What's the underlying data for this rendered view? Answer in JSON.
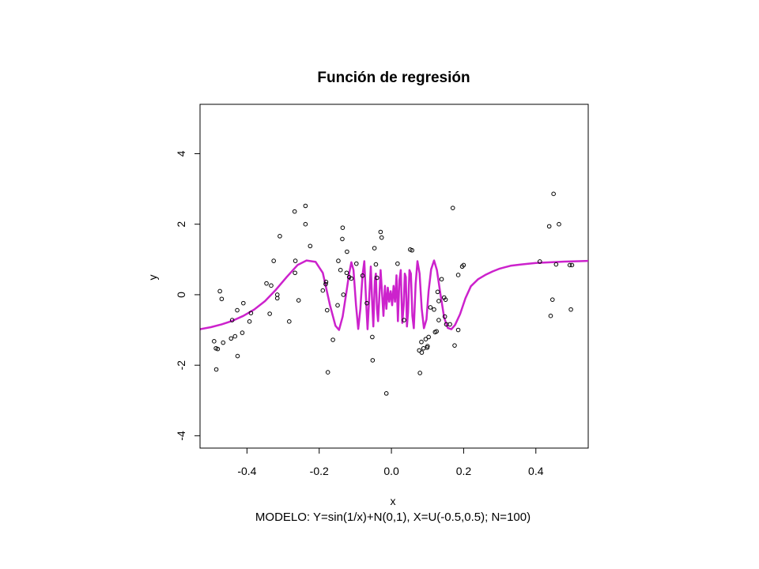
{
  "chart_data": {
    "type": "scatter",
    "title": "Función de regresión",
    "xlabel": "x",
    "ylabel": "y",
    "subtitle": "MODELO: Y=sin(1/x)+N(0,1), X=U(-0.5,0.5);  N=100)",
    "xlim": [
      -0.53,
      0.545
    ],
    "ylim": [
      -4.35,
      5.4
    ],
    "x_ticks": [
      -0.4,
      -0.2,
      0.0,
      0.2,
      0.4
    ],
    "x_tick_labels": [
      "-0.4",
      "-0.2",
      "0.0",
      "0.2",
      "0.4"
    ],
    "y_ticks": [
      -4,
      -2,
      0,
      2,
      4
    ],
    "y_tick_labels": [
      "-4",
      "-2",
      "0",
      "2",
      "4"
    ],
    "grid": false,
    "series": [
      {
        "kind": "points",
        "marker": "open-circle",
        "color": "#000000",
        "points": [
          [
            -0.491,
            -1.32
          ],
          [
            -0.486,
            -1.52
          ],
          [
            -0.481,
            -1.54
          ],
          [
            -0.485,
            -2.12
          ],
          [
            -0.475,
            0.1
          ],
          [
            -0.47,
            -0.12
          ],
          [
            -0.466,
            -1.36
          ],
          [
            -0.444,
            -1.24
          ],
          [
            -0.441,
            -0.72
          ],
          [
            -0.433,
            -1.18
          ],
          [
            -0.427,
            -0.44
          ],
          [
            -0.426,
            -1.74
          ],
          [
            -0.413,
            -1.08
          ],
          [
            -0.41,
            -0.24
          ],
          [
            -0.393,
            -0.76
          ],
          [
            -0.389,
            -0.52
          ],
          [
            -0.346,
            0.32
          ],
          [
            -0.337,
            -0.54
          ],
          [
            -0.333,
            0.26
          ],
          [
            -0.326,
            0.96
          ],
          [
            -0.316,
            -0.1
          ],
          [
            -0.316,
            0.0
          ],
          [
            -0.309,
            1.66
          ],
          [
            -0.283,
            -0.76
          ],
          [
            -0.268,
            2.36
          ],
          [
            -0.267,
            0.62
          ],
          [
            -0.266,
            0.96
          ],
          [
            -0.257,
            -0.16
          ],
          [
            -0.238,
            2.52
          ],
          [
            -0.238,
            2.0
          ],
          [
            -0.225,
            1.38
          ],
          [
            -0.19,
            0.12
          ],
          [
            -0.182,
            0.3
          ],
          [
            -0.181,
            0.36
          ],
          [
            -0.178,
            -0.44
          ],
          [
            -0.176,
            -2.2
          ],
          [
            -0.162,
            -1.28
          ],
          [
            -0.149,
            -0.3
          ],
          [
            -0.147,
            0.96
          ],
          [
            -0.141,
            0.7
          ],
          [
            -0.136,
            1.58
          ],
          [
            -0.135,
            1.9
          ],
          [
            -0.133,
            0.0
          ],
          [
            -0.124,
            0.62
          ],
          [
            -0.123,
            1.22
          ],
          [
            -0.117,
            0.5
          ],
          [
            -0.111,
            0.46
          ],
          [
            -0.097,
            0.88
          ],
          [
            -0.08,
            0.54
          ],
          [
            -0.068,
            -0.24
          ],
          [
            -0.053,
            -1.2
          ],
          [
            -0.052,
            -1.86
          ],
          [
            -0.047,
            1.32
          ],
          [
            -0.043,
            0.86
          ],
          [
            -0.04,
            0.48
          ],
          [
            -0.03,
            1.78
          ],
          [
            -0.027,
            1.62
          ],
          [
            -0.014,
            -2.8
          ],
          [
            0.017,
            0.88
          ],
          [
            0.035,
            -0.72
          ],
          [
            0.052,
            1.28
          ],
          [
            0.057,
            1.26
          ],
          [
            0.077,
            -1.58
          ],
          [
            0.079,
            -2.22
          ],
          [
            0.083,
            -1.34
          ],
          [
            0.084,
            -1.64
          ],
          [
            0.089,
            -1.52
          ],
          [
            0.095,
            -1.26
          ],
          [
            0.099,
            -1.5
          ],
          [
            0.1,
            -1.46
          ],
          [
            0.103,
            -1.2
          ],
          [
            0.108,
            -0.36
          ],
          [
            0.118,
            -0.42
          ],
          [
            0.121,
            -1.06
          ],
          [
            0.125,
            -1.04
          ],
          [
            0.128,
            0.08
          ],
          [
            0.131,
            -0.72
          ],
          [
            0.131,
            -0.18
          ],
          [
            0.139,
            0.44
          ],
          [
            0.146,
            -0.08
          ],
          [
            0.148,
            -0.62
          ],
          [
            0.15,
            -0.14
          ],
          [
            0.152,
            -0.84
          ],
          [
            0.162,
            -0.84
          ],
          [
            0.17,
            2.46
          ],
          [
            0.175,
            -1.44
          ],
          [
            0.185,
            0.56
          ],
          [
            0.185,
            -1.0
          ],
          [
            0.196,
            0.8
          ],
          [
            0.2,
            0.84
          ],
          [
            0.411,
            0.94
          ],
          [
            0.437,
            1.94
          ],
          [
            0.441,
            -0.6
          ],
          [
            0.446,
            -0.14
          ],
          [
            0.449,
            2.86
          ],
          [
            0.456,
            0.86
          ],
          [
            0.464,
            2.0
          ],
          [
            0.494,
            0.84
          ],
          [
            0.497,
            -0.42
          ],
          [
            0.5,
            0.84
          ]
        ]
      },
      {
        "kind": "line",
        "name": "",
        "color": "#cc22cc",
        "points": [
          [
            -0.53,
            -0.98
          ],
          [
            -0.5,
            -0.92
          ],
          [
            -0.47,
            -0.84
          ],
          [
            -0.44,
            -0.74
          ],
          [
            -0.41,
            -0.6
          ],
          [
            -0.38,
            -0.42
          ],
          [
            -0.35,
            -0.18
          ],
          [
            -0.32,
            0.14
          ],
          [
            -0.29,
            0.5
          ],
          [
            -0.26,
            0.84
          ],
          [
            -0.235,
            0.97
          ],
          [
            -0.21,
            0.93
          ],
          [
            -0.19,
            0.62
          ],
          [
            -0.17,
            -0.3
          ],
          [
            -0.155,
            -0.88
          ],
          [
            -0.145,
            -1.0
          ],
          [
            -0.135,
            -0.62
          ],
          [
            -0.125,
            0.05
          ],
          [
            -0.117,
            0.6
          ],
          [
            -0.111,
            0.92
          ],
          [
            -0.105,
            0.7
          ],
          [
            -0.098,
            -0.3
          ],
          [
            -0.092,
            -0.97
          ],
          [
            -0.086,
            -0.4
          ],
          [
            -0.08,
            0.55
          ],
          [
            -0.075,
            0.95
          ],
          [
            -0.07,
            -0.2
          ],
          [
            -0.066,
            -0.98
          ],
          [
            -0.061,
            0.0
          ],
          [
            -0.057,
            0.8
          ],
          [
            -0.053,
            -0.3
          ],
          [
            -0.05,
            -0.9
          ],
          [
            -0.046,
            0.4
          ],
          [
            -0.043,
            0.6
          ],
          [
            -0.04,
            -0.4
          ],
          [
            -0.037,
            -0.75
          ],
          [
            -0.034,
            -0.2
          ],
          [
            -0.03,
            0.7
          ],
          [
            -0.026,
            0.05
          ],
          [
            -0.022,
            -0.6
          ],
          [
            -0.018,
            0.25
          ],
          [
            -0.014,
            -0.4
          ],
          [
            -0.01,
            0.2
          ],
          [
            -0.006,
            -0.2
          ],
          [
            -0.002,
            0.1
          ],
          [
            0.002,
            -0.3
          ],
          [
            0.006,
            0.25
          ],
          [
            0.01,
            -0.2
          ],
          [
            0.014,
            0.55
          ],
          [
            0.018,
            -0.75
          ],
          [
            0.022,
            0.4
          ],
          [
            0.026,
            0.7
          ],
          [
            0.03,
            -0.8
          ],
          [
            0.034,
            -0.3
          ],
          [
            0.037,
            0.6
          ],
          [
            0.04,
            0.5
          ],
          [
            0.043,
            -0.9
          ],
          [
            0.046,
            -0.5
          ],
          [
            0.05,
            0.7
          ],
          [
            0.054,
            0.6
          ],
          [
            0.058,
            -0.6
          ],
          [
            0.062,
            -0.95
          ],
          [
            0.067,
            0.3
          ],
          [
            0.072,
            0.95
          ],
          [
            0.078,
            0.6
          ],
          [
            0.084,
            -0.4
          ],
          [
            0.09,
            -0.95
          ],
          [
            0.097,
            -0.7
          ],
          [
            0.103,
            0.1
          ],
          [
            0.11,
            0.72
          ],
          [
            0.118,
            0.97
          ],
          [
            0.126,
            0.7
          ],
          [
            0.136,
            0.0
          ],
          [
            0.146,
            -0.65
          ],
          [
            0.156,
            -0.94
          ],
          [
            0.166,
            -0.98
          ],
          [
            0.176,
            -0.86
          ],
          [
            0.19,
            -0.55
          ],
          [
            0.205,
            -0.1
          ],
          [
            0.22,
            0.24
          ],
          [
            0.24,
            0.44
          ],
          [
            0.26,
            0.56
          ],
          [
            0.28,
            0.66
          ],
          [
            0.3,
            0.74
          ],
          [
            0.33,
            0.82
          ],
          [
            0.36,
            0.86
          ],
          [
            0.4,
            0.9
          ],
          [
            0.44,
            0.92
          ],
          [
            0.48,
            0.94
          ],
          [
            0.52,
            0.95
          ],
          [
            0.545,
            0.96
          ]
        ]
      }
    ]
  }
}
